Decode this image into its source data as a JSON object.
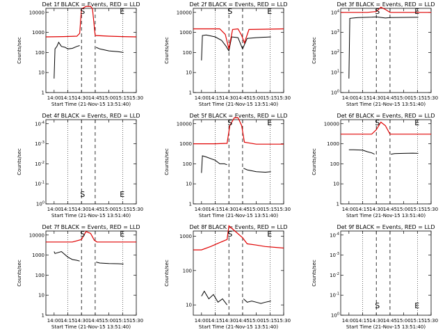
{
  "chart_data": [
    {
      "type": "line",
      "title": "Det 1f BLACK = Events, RED = LLD",
      "ylabel": "Counts/sec",
      "xlabel": "Start Time (21-Nov-15 13:51:40)",
      "x_ticks": [
        "14:00",
        "14:15",
        "14:30",
        "14:45",
        "15:00",
        "15:15",
        "15:30"
      ],
      "y_ticks": [
        "1",
        "10",
        "100",
        "1000",
        "10000"
      ],
      "ylim_log10": [
        0,
        4.2
      ],
      "markers": {
        "S": "14:30",
        "E": "15:15"
      },
      "series": [
        {
          "name": "Events",
          "color": "#000000",
          "x": [
            "14:00",
            "14:01",
            "14:03",
            "14:05",
            "14:08",
            "14:12",
            "14:15",
            "14:20",
            "14:25",
            "14:28"
          ],
          "values": [
            5,
            150,
            200,
            320,
            200,
            180,
            150,
            160,
            200,
            220
          ]
        },
        {
          "name": "Events",
          "color": "#000000",
          "x": [
            "14:46",
            "14:50",
            "15:00",
            "15:10",
            "15:16"
          ],
          "values": [
            180,
            150,
            120,
            110,
            100
          ]
        },
        {
          "name": "LLD",
          "color": "#e00000",
          "x": [
            "13:51",
            "14:10",
            "14:25",
            "14:28",
            "14:30",
            "14:35",
            "14:40",
            "14:42",
            "14:45",
            "15:00",
            "15:15",
            "15:30"
          ],
          "values": [
            600,
            620,
            650,
            900,
            15000,
            20000,
            20000,
            15000,
            700,
            650,
            620,
            600
          ]
        }
      ]
    },
    {
      "type": "line",
      "title": "Det 2f BLACK = Events, RED = LLD",
      "ylabel": "Counts/sec",
      "xlabel": "Start Time (21-Nov-15 13:51:40)",
      "x_ticks": [
        "14:00",
        "14:15",
        "14:30",
        "14:45",
        "15:00",
        "15:15",
        "15:30"
      ],
      "y_ticks": [
        "1",
        "10",
        "100",
        "1000",
        "10000"
      ],
      "ylim_log10": [
        0,
        4.2
      ],
      "markers": {
        "S": "14:30",
        "E": "15:15"
      },
      "series": [
        {
          "name": "Events",
          "color": "#000000",
          "x": [
            "14:00",
            "14:01",
            "14:05",
            "14:15",
            "14:22",
            "14:27",
            "14:30",
            "14:33",
            "14:40",
            "14:45",
            "14:50",
            "15:00",
            "15:16"
          ],
          "values": [
            40,
            700,
            750,
            600,
            400,
            200,
            120,
            600,
            550,
            150,
            500,
            550,
            600
          ]
        },
        {
          "name": "LLD",
          "color": "#e00000",
          "x": [
            "13:51",
            "14:20",
            "14:26",
            "14:30",
            "14:34",
            "14:40",
            "14:44",
            "14:47",
            "14:52",
            "15:30"
          ],
          "values": [
            1500,
            1500,
            800,
            150,
            1400,
            1500,
            700,
            300,
            1400,
            1500
          ]
        }
      ]
    },
    {
      "type": "line",
      "title": "Det 3f BLACK = Events, RED = LLD",
      "ylabel": "Counts/sec",
      "xlabel": "Start Time (21-Nov-15 13:51:40)",
      "x_ticks": [
        "14:00",
        "14:15",
        "14:30",
        "14:45",
        "15:00",
        "15:15",
        "15:30"
      ],
      "y_ticks": [
        "10^0",
        "10^1",
        "10^2",
        "10^3",
        "10^4"
      ],
      "ylim_log10": [
        0,
        4.2
      ],
      "markers": {
        "S": "14:30",
        "E": "15:15"
      },
      "series": [
        {
          "name": "Events",
          "color": "#000000",
          "x": [
            "14:00",
            "14:01",
            "14:10",
            "14:25",
            "14:30",
            "14:40",
            "14:45",
            "15:00",
            "15:16"
          ],
          "values": [
            5,
            5000,
            5500,
            5800,
            6000,
            5200,
            5500,
            5600,
            5700
          ]
        },
        {
          "name": "LLD",
          "color": "#e00000",
          "x": [
            "13:51",
            "14:20",
            "14:30",
            "14:35",
            "14:40",
            "14:45",
            "15:00",
            "15:30"
          ],
          "values": [
            10000,
            10000,
            11000,
            18000,
            14000,
            10000,
            10000,
            10000
          ]
        }
      ]
    },
    {
      "type": "line",
      "title": "Det 4f BLACK = Events, RED = LLD",
      "ylabel": "Counts/sec",
      "xlabel": "Start Time (21-Nov-15 13:51:40)",
      "x_ticks": [
        "14:00",
        "14:15",
        "14:30",
        "14:45",
        "15:00",
        "15:15",
        "15:30"
      ],
      "y_ticks": [
        "10^0",
        "10^-1",
        "10^-2",
        "10^-3",
        "10^-4"
      ],
      "ylim_log10": [
        0,
        4.2
      ],
      "markers": {
        "S": "14:30",
        "E": "15:15"
      },
      "series": []
    },
    {
      "type": "line",
      "title": "Det 5f BLACK = Events, RED = LLD",
      "ylabel": "Counts/sec",
      "xlabel": "Start Time (21-Nov-15 13:51:40)",
      "x_ticks": [
        "14:00",
        "14:15",
        "14:30",
        "14:45",
        "15:00",
        "15:15",
        "15:30"
      ],
      "y_ticks": [
        "1",
        "10",
        "100",
        "1000",
        "10000"
      ],
      "ylim_log10": [
        0,
        4.2
      ],
      "markers": {
        "S": "14:30",
        "E": "15:15"
      },
      "series": [
        {
          "name": "Events",
          "color": "#000000",
          "x": [
            "14:00",
            "14:01",
            "14:05",
            "14:15",
            "14:20",
            "14:25",
            "14:28"
          ],
          "values": [
            35,
            250,
            220,
            150,
            100,
            100,
            90
          ]
        },
        {
          "name": "Events",
          "color": "#000000",
          "x": [
            "14:46",
            "14:50",
            "15:00",
            "15:10",
            "15:16"
          ],
          "values": [
            60,
            50,
            40,
            38,
            40
          ]
        },
        {
          "name": "LLD",
          "color": "#e00000",
          "x": [
            "13:51",
            "14:15",
            "14:28",
            "14:31",
            "14:36",
            "14:40",
            "14:44",
            "14:47",
            "15:00",
            "15:30"
          ],
          "values": [
            1000,
            1000,
            1050,
            8000,
            20000,
            20000,
            8000,
            1200,
            950,
            950
          ]
        }
      ]
    },
    {
      "type": "line",
      "title": "Det 6f BLACK = Events, RED = LLD",
      "ylabel": "Counts/sec",
      "xlabel": "Start Time (21-Nov-15 13:51:40)",
      "x_ticks": [
        "14:00",
        "14:15",
        "14:30",
        "14:45",
        "15:00",
        "15:15",
        "15:30"
      ],
      "y_ticks": [
        "1",
        "10",
        "100",
        "1000",
        "10000"
      ],
      "ylim_log10": [
        0,
        4.2
      ],
      "markers": {
        "S": "14:30",
        "E": "15:15"
      },
      "series": [
        {
          "name": "Events",
          "color": "#000000",
          "x": [
            "14:00",
            "14:05",
            "14:15",
            "14:20",
            "14:25",
            "14:28"
          ],
          "values": [
            500,
            500,
            480,
            400,
            350,
            300
          ]
        },
        {
          "name": "Events",
          "color": "#000000",
          "x": [
            "14:46",
            "14:50",
            "15:00",
            "15:10",
            "15:16"
          ],
          "values": [
            300,
            320,
            330,
            340,
            330
          ]
        },
        {
          "name": "LLD",
          "color": "#e00000",
          "x": [
            "13:51",
            "14:25",
            "14:30",
            "14:35",
            "14:40",
            "14:45",
            "15:00",
            "15:30"
          ],
          "values": [
            3000,
            3000,
            5000,
            12000,
            8000,
            3000,
            3000,
            3000
          ]
        }
      ]
    },
    {
      "type": "line",
      "title": "Det 7f BLACK = Events, RED = LLD",
      "ylabel": "Counts/sec",
      "xlabel": "Start Time (21-Nov-15 13:51:40)",
      "x_ticks": [
        "14:00",
        "14:15",
        "14:30",
        "14:45",
        "15:00",
        "15:15",
        "15:30"
      ],
      "y_ticks": [
        "1",
        "10",
        "100",
        "1000",
        "10000"
      ],
      "ylim_log10": [
        0,
        4.2
      ],
      "markers": {
        "S": "14:30",
        "E": "15:15"
      },
      "series": [
        {
          "name": "Events",
          "color": "#000000",
          "x": [
            "14:00",
            "14:01",
            "14:08",
            "14:15",
            "14:20",
            "14:25",
            "14:28"
          ],
          "values": [
            1500,
            1200,
            1500,
            800,
            600,
            550,
            500
          ]
        },
        {
          "name": "Events",
          "color": "#000000",
          "x": [
            "14:46",
            "14:50",
            "15:00",
            "15:10",
            "15:16"
          ],
          "values": [
            450,
            400,
            380,
            370,
            360
          ]
        },
        {
          "name": "LLD",
          "color": "#e00000",
          "x": [
            "13:51",
            "14:20",
            "14:30",
            "14:35",
            "14:40",
            "14:44",
            "14:47",
            "15:00",
            "15:30"
          ],
          "values": [
            4500,
            4500,
            6000,
            15000,
            12000,
            5500,
            4500,
            4500,
            4500
          ]
        }
      ]
    },
    {
      "type": "line",
      "title": "Det 8f BLACK = Events, RED = LLD",
      "ylabel": "Counts/sec",
      "xlabel": "Start Time (21-Nov-15 13:51:40)",
      "x_ticks": [
        "14:00",
        "14:15",
        "14:30",
        "14:45",
        "15:00",
        "15:15",
        "15:30"
      ],
      "y_ticks": [
        "10",
        "100",
        "1000"
      ],
      "ylim_log10": [
        0.7,
        3.15
      ],
      "markers": {
        "S": "14:30",
        "E": "15:15"
      },
      "series": [
        {
          "name": "Events",
          "color": "#000000",
          "x": [
            "14:00",
            "14:03",
            "14:08",
            "14:13",
            "14:18",
            "14:23",
            "14:28"
          ],
          "values": [
            18,
            25,
            15,
            20,
            12,
            15,
            10
          ]
        },
        {
          "name": "Events",
          "color": "#000000",
          "x": [
            "14:46",
            "14:50",
            "14:55",
            "15:00",
            "15:05",
            "15:10",
            "15:16"
          ],
          "values": [
            15,
            12,
            13,
            12,
            11,
            12,
            13
          ]
        },
        {
          "name": "LLD",
          "color": "#e00000",
          "x": [
            "13:51",
            "14:00",
            "14:10",
            "14:20",
            "14:28",
            "14:30",
            "14:45",
            "14:50",
            "15:00",
            "15:10",
            "15:30"
          ],
          "values": [
            400,
            400,
            500,
            650,
            800,
            2000,
            900,
            600,
            550,
            500,
            450
          ]
        }
      ]
    },
    {
      "type": "line",
      "title": "Det 9f BLACK = Events, RED = LLD",
      "ylabel": "Counts/sec",
      "xlabel": "Start Time (21-Nov-15 13:51:40)",
      "x_ticks": [
        "14:00",
        "14:15",
        "14:30",
        "14:45",
        "15:00",
        "15:15",
        "15:30"
      ],
      "y_ticks": [
        "10^0",
        "10^-1",
        "10^-2",
        "10^-3",
        "10^-4"
      ],
      "ylim_log10": [
        0,
        4.2
      ],
      "markers": {
        "S": "14:30",
        "E": "15:15"
      },
      "series": []
    }
  ]
}
